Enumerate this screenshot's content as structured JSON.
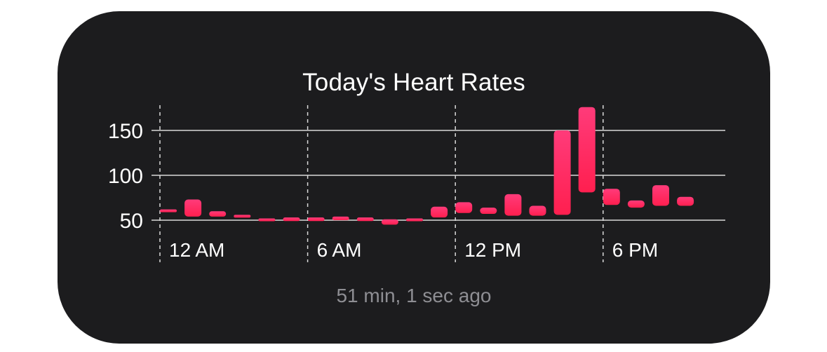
{
  "widget": {
    "title": "Today's Heart Rates",
    "subtitle": "51 min, 1 sec ago"
  },
  "colors": {
    "background": "#1c1c1e",
    "bar_top": "#ff3b7a",
    "bar_bottom": "#ff1f4f",
    "gridline": "#d9d9d9",
    "text_primary": "#ffffff",
    "text_secondary": "#8e8e93"
  },
  "chart_data": {
    "type": "bar",
    "subtype": "range",
    "title": "Today's Heart Rates",
    "ylim": [
      44,
      178
    ],
    "y_ticks": [
      50,
      100,
      150
    ],
    "x_ticks": [
      "12 AM",
      "6 AM",
      "12 PM",
      "6 PM"
    ],
    "grid": "horizontal lines at y ticks; dashed vertical lines at x ticks",
    "legend": "none",
    "x_unit": "hour (0 = 12 AM)",
    "bars": [
      {
        "hour": 0.0,
        "low": 59,
        "high": 62
      },
      {
        "hour": 1.0,
        "low": 54,
        "high": 73
      },
      {
        "hour": 2.0,
        "low": 54,
        "high": 60
      },
      {
        "hour": 3.0,
        "low": 53,
        "high": 56
      },
      {
        "hour": 4.0,
        "low": 50,
        "high": 52
      },
      {
        "hour": 5.0,
        "low": 49,
        "high": 53
      },
      {
        "hour": 6.0,
        "low": 49,
        "high": 53
      },
      {
        "hour": 7.0,
        "low": 50,
        "high": 54
      },
      {
        "hour": 8.0,
        "low": 49,
        "high": 53
      },
      {
        "hour": 9.0,
        "low": 45,
        "high": 51
      },
      {
        "hour": 10.0,
        "low": 49,
        "high": 52
      },
      {
        "hour": 11.0,
        "low": 53,
        "high": 65
      },
      {
        "hour": 12.0,
        "low": 58,
        "high": 70
      },
      {
        "hour": 13.0,
        "low": 57,
        "high": 64
      },
      {
        "hour": 14.0,
        "low": 55,
        "high": 79
      },
      {
        "hour": 15.0,
        "low": 55,
        "high": 66
      },
      {
        "hour": 16.0,
        "low": 56,
        "high": 150
      },
      {
        "hour": 17.0,
        "low": 81,
        "high": 176
      },
      {
        "hour": 18.0,
        "low": 67,
        "high": 85
      },
      {
        "hour": 19.0,
        "low": 64,
        "high": 72
      },
      {
        "hour": 20.0,
        "low": 66,
        "high": 89
      },
      {
        "hour": 21.0,
        "low": 66,
        "high": 76
      }
    ]
  }
}
